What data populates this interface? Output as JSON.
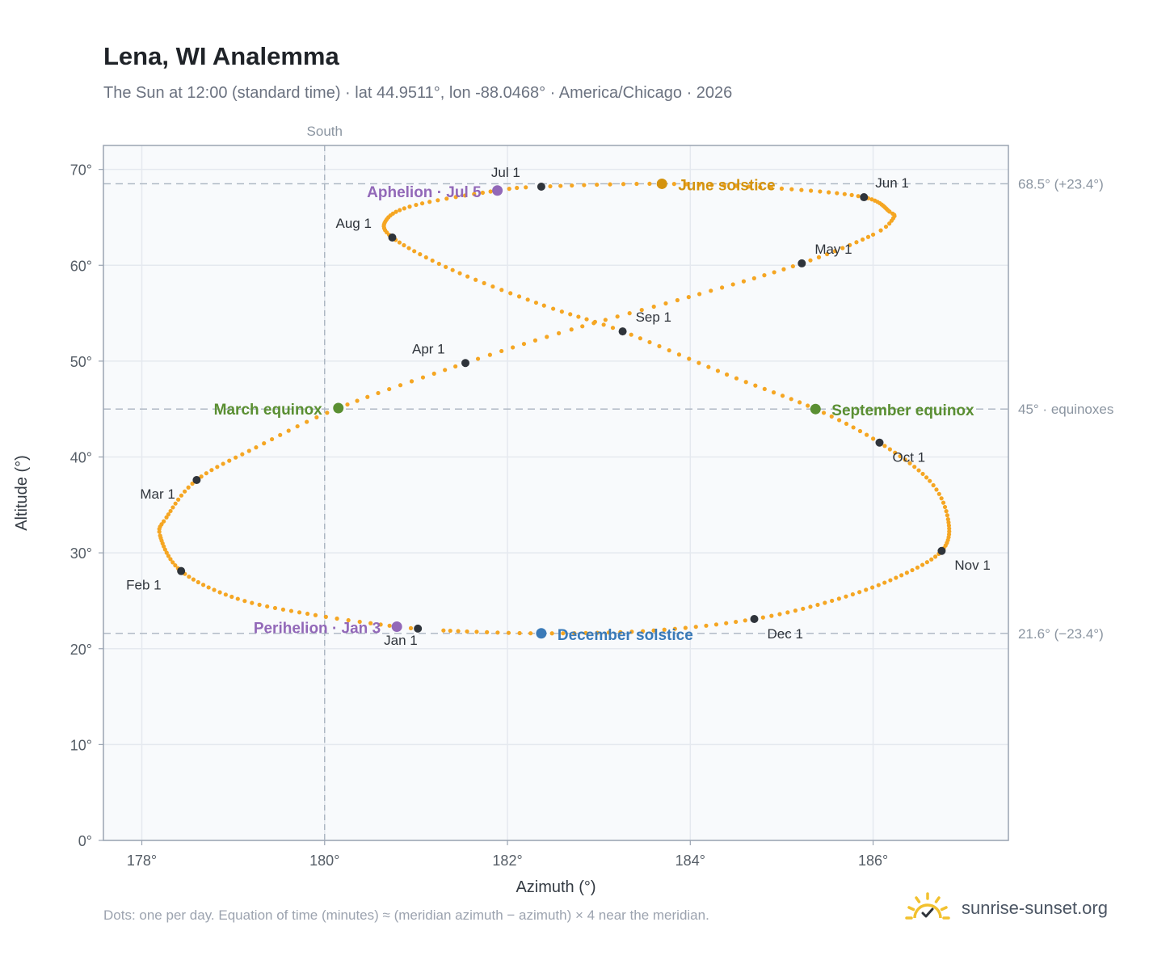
{
  "page": {
    "title": "Lena, WI Analemma",
    "subtitle": "The Sun at 12:00 (standard time) · lat 44.9511°, lon -88.0468° · America/Chicago · 2026",
    "footnote": "Dots: one per day. Equation of time (minutes) ≈ (meridian azimuth − azimuth) × 4 near the meridian.",
    "brand": "sunrise-sunset.org"
  },
  "colors": {
    "path": "#f5a623",
    "month_marker": "#2f343b",
    "solstice_june": "#d4930e",
    "solstice_december": "#3a7ab8",
    "equinox": "#5a8f32",
    "apsis": "#9268b8",
    "grid": "#e5e9ef",
    "plot_bg": "#f8fafc",
    "frame": "#9aa4b2",
    "reference_line": "#aab4c0",
    "axis_text": "#555d66",
    "brand_sun": "#f2c12e"
  },
  "chart_data": {
    "type": "scatter",
    "xlabel": "Azimuth (°)",
    "ylabel": "Altitude (°)",
    "xlim": [
      177.58,
      187.48
    ],
    "ylim": [
      0,
      72.5
    ],
    "xticks": [
      178,
      180,
      182,
      184,
      186
    ],
    "yticks": [
      0,
      10,
      20,
      30,
      40,
      50,
      60,
      70
    ],
    "tick_suffix": "°",
    "grid": true,
    "meridian": {
      "azimuth": 180,
      "label": "South"
    },
    "reference_lines": [
      {
        "altitude": 68.5,
        "label": "68.5° (+23.4°)"
      },
      {
        "altitude": 45.0,
        "label": "45° · equinoxes"
      },
      {
        "altitude": 21.6,
        "label": "21.6° (−23.4°)"
      }
    ],
    "month_markers": [
      {
        "label": "Jan 1",
        "azimuth": 181.02,
        "altitude": 22.1
      },
      {
        "label": "Feb 1",
        "azimuth": 178.43,
        "altitude": 28.1
      },
      {
        "label": "Mar 1",
        "azimuth": 178.6,
        "altitude": 37.6
      },
      {
        "label": "Apr 1",
        "azimuth": 181.54,
        "altitude": 49.8
      },
      {
        "label": "May 1",
        "azimuth": 185.22,
        "altitude": 60.2
      },
      {
        "label": "Jun 1",
        "azimuth": 185.9,
        "altitude": 67.1
      },
      {
        "label": "Jul 1",
        "azimuth": 182.37,
        "altitude": 68.2
      },
      {
        "label": "Aug 1",
        "azimuth": 180.74,
        "altitude": 62.9
      },
      {
        "label": "Sep 1",
        "azimuth": 183.26,
        "altitude": 53.1
      },
      {
        "label": "Oct 1",
        "azimuth": 186.07,
        "altitude": 41.5
      },
      {
        "label": "Nov 1",
        "azimuth": 186.75,
        "altitude": 30.2
      },
      {
        "label": "Dec 1",
        "azimuth": 184.7,
        "altitude": 23.1
      }
    ],
    "events": [
      {
        "label": "June solstice",
        "azimuth": 183.69,
        "altitude": 68.5,
        "kind": "solstice_june"
      },
      {
        "label": "December solstice",
        "azimuth": 182.37,
        "altitude": 21.6,
        "kind": "solstice_december"
      },
      {
        "label": "March equinox",
        "azimuth": 180.15,
        "altitude": 45.1,
        "kind": "equinox"
      },
      {
        "label": "September equinox",
        "azimuth": 185.37,
        "altitude": 45.0,
        "kind": "equinox"
      },
      {
        "label": "Aphelion · Jul 5",
        "azimuth": 181.89,
        "altitude": 67.8,
        "kind": "apsis"
      },
      {
        "label": "Perihelion · Jan 3",
        "azimuth": 180.79,
        "altitude": 22.3,
        "kind": "apsis"
      }
    ],
    "path_keypoints": [
      [
        1,
        181.02,
        22.1
      ],
      [
        3,
        180.79,
        22.3
      ],
      [
        11,
        179.9,
        23.5
      ],
      [
        21,
        179.05,
        25.2
      ],
      [
        32,
        178.43,
        28.1
      ],
      [
        44,
        178.2,
        31.8
      ],
      [
        50,
        178.27,
        33.7
      ],
      [
        60,
        178.6,
        37.6
      ],
      [
        70,
        179.25,
        41.0
      ],
      [
        79,
        180.15,
        45.1
      ],
      [
        91,
        181.54,
        49.8
      ],
      [
        100,
        182.7,
        53.3
      ],
      [
        111,
        184.1,
        57.0
      ],
      [
        121,
        185.22,
        60.2
      ],
      [
        131,
        186.0,
        63.2
      ],
      [
        136,
        186.22,
        64.9
      ],
      [
        140,
        186.18,
        65.6
      ],
      [
        152,
        185.9,
        67.1
      ],
      [
        162,
        185.0,
        68.0
      ],
      [
        172,
        183.69,
        68.5
      ],
      [
        182,
        182.37,
        68.2
      ],
      [
        186,
        181.89,
        67.8
      ],
      [
        196,
        181.0,
        66.3
      ],
      [
        204,
        180.68,
        64.8
      ],
      [
        213,
        180.74,
        62.9
      ],
      [
        224,
        181.4,
        59.5
      ],
      [
        235,
        182.4,
        55.8
      ],
      [
        244,
        183.26,
        53.1
      ],
      [
        255,
        184.4,
        48.6
      ],
      [
        265,
        185.37,
        45.0
      ],
      [
        274,
        186.07,
        41.5
      ],
      [
        285,
        186.62,
        37.5
      ],
      [
        294,
        186.82,
        33.5
      ],
      [
        305,
        186.75,
        30.2
      ],
      [
        315,
        186.25,
        27.4
      ],
      [
        325,
        185.55,
        25.0
      ],
      [
        335,
        184.7,
        23.1
      ],
      [
        345,
        183.6,
        21.9
      ],
      [
        355,
        182.37,
        21.6
      ],
      [
        365,
        181.3,
        21.9
      ],
      [
        366,
        181.02,
        22.1
      ]
    ]
  }
}
